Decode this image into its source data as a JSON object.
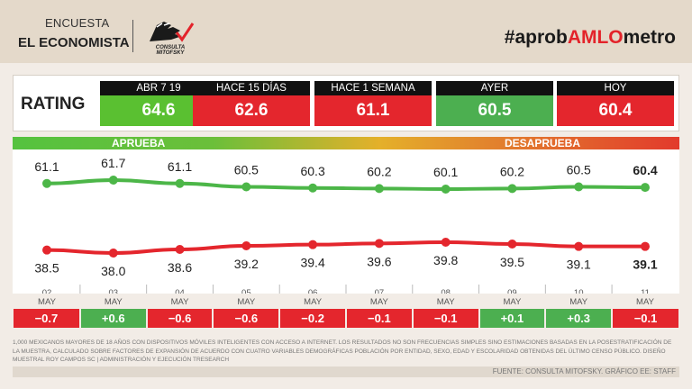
{
  "header": {
    "title_line1": "ENCUESTA",
    "title_line2": "EL ECONOMISTA",
    "logo_text": "CONSULTA MITOFSKY",
    "hashtag_prefix": "#aprob",
    "hashtag_highlight": "AMLO",
    "hashtag_suffix": "metro"
  },
  "rating": {
    "label": "RATING",
    "cards": [
      {
        "label": "ABR 7 19",
        "value": "64.6",
        "color": "#5ac031"
      },
      {
        "label": "HACE 15 DÍAS",
        "value": "62.6",
        "color": "#e4262d"
      },
      {
        "label": "HACE 1 SEMANA",
        "value": "61.1",
        "color": "#e4262d"
      },
      {
        "label": "AYER",
        "value": "60.5",
        "color": "#4caf50"
      },
      {
        "label": "HOY",
        "value": "60.4",
        "color": "#e4262d"
      }
    ]
  },
  "legend": {
    "approve": "APRUEBA",
    "disapprove": "DESAPRUEBA"
  },
  "colors": {
    "approve": "#4cb648",
    "disapprove": "#e4262d",
    "positive": "#4caf50",
    "negative": "#e4262d"
  },
  "chart_data": {
    "type": "line",
    "categories": [
      "02\nMAY",
      "03\nMAY",
      "04\nMAY",
      "05\nMAY",
      "06\nMAY",
      "07\nMAY",
      "08\nMAY",
      "09\nMAY",
      "10\nMAY",
      "11\nMAY"
    ],
    "day_labels": [
      "02",
      "03",
      "04",
      "05",
      "06",
      "07",
      "08",
      "09",
      "10",
      "11"
    ],
    "month_label": "MAY",
    "series": [
      {
        "name": "APRUEBA",
        "values": [
          61.1,
          61.7,
          61.1,
          60.5,
          60.3,
          60.2,
          60.1,
          60.2,
          60.5,
          60.4
        ]
      },
      {
        "name": "DESAPRUEBA",
        "values": [
          38.5,
          38.0,
          38.6,
          39.2,
          39.4,
          39.6,
          39.8,
          39.5,
          39.1,
          39.1
        ]
      }
    ],
    "value_labels": {
      "approve": [
        "61.1",
        "61.7",
        "61.1",
        "60.5",
        "60.3",
        "60.2",
        "60.1",
        "60.2",
        "60.5",
        "60.4"
      ],
      "disapprove": [
        "38.5",
        "38.0",
        "38.6",
        "39.2",
        "39.4",
        "39.6",
        "39.8",
        "39.5",
        "39.1",
        "39.1"
      ]
    },
    "daily_change": [
      "−0.7",
      "+0.6",
      "−0.6",
      "−0.6",
      "−0.2",
      "−0.1",
      "−0.1",
      "+0.1",
      "+0.3",
      "−0.1"
    ],
    "daily_change_values": [
      -0.7,
      0.6,
      -0.6,
      -0.6,
      -0.2,
      -0.1,
      -0.1,
      0.1,
      0.3,
      -0.1
    ],
    "grid": false
  },
  "footnote": "1,000 MEXICANOS MAYORES DE 18 AÑOS CON DISPOSITIVOS MÓVILES INTELIGENTES CON ACCESO A INTERNET. LOS RESULTADOS NO SON FRECUENCIAS SIMPLES SINO ESTIMACIONES BASADAS EN LA POSESTRATIFICACIÓN DE LA MUESTRA, CALCULADO SOBRE FACTORES DE EXPANSIÓN DE ACUERDO CON CUATRO VARIABLES DEMOGRÁFICAS POBLACIÓN POR ENTIDAD, SEXO, EDAD Y ESCOLARIDAD OBTENIDAS DEL ÚLTIMO CENSO PÚBLICO. DISEÑO MUESTRAL ROY CAMPOS SC | ADMINISTRACIÓN Y EJECUCIÓN TRESEARCH",
  "source": "FUENTE: CONSULTA MITOFSKY. GRÁFICO EE: STAFF"
}
